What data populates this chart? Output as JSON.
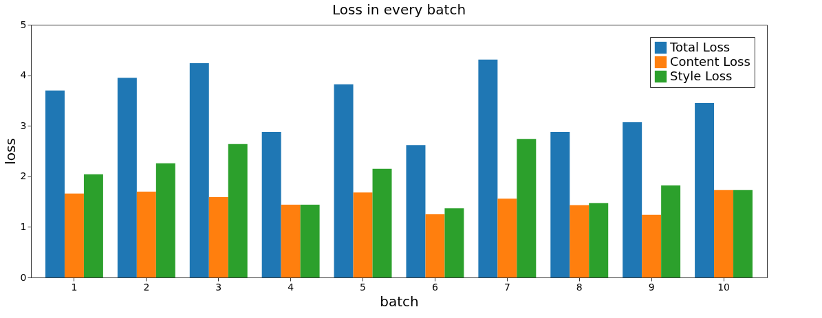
{
  "chart_data": {
    "type": "bar",
    "title": "Loss in every batch",
    "xlabel": "batch",
    "ylabel": "loss",
    "categories": [
      "1",
      "2",
      "3",
      "4",
      "5",
      "6",
      "7",
      "8",
      "9",
      "10"
    ],
    "series": [
      {
        "name": "Total Loss",
        "color": "#1f77b4",
        "values": [
          3.7,
          3.95,
          4.24,
          2.88,
          3.82,
          2.62,
          4.31,
          2.88,
          3.07,
          3.45
        ]
      },
      {
        "name": "Content Loss",
        "color": "#ff7f0e",
        "values": [
          1.66,
          1.7,
          1.59,
          1.44,
          1.68,
          1.25,
          1.56,
          1.43,
          1.24,
          1.73
        ]
      },
      {
        "name": "Style Loss",
        "color": "#2ca02c",
        "values": [
          2.04,
          2.26,
          2.64,
          1.44,
          2.15,
          1.37,
          2.74,
          1.47,
          1.82,
          1.73
        ]
      }
    ],
    "ylim": [
      0,
      5
    ],
    "yticks": [
      0,
      1,
      2,
      3,
      4,
      5
    ],
    "grid": false,
    "legend": "top right"
  }
}
